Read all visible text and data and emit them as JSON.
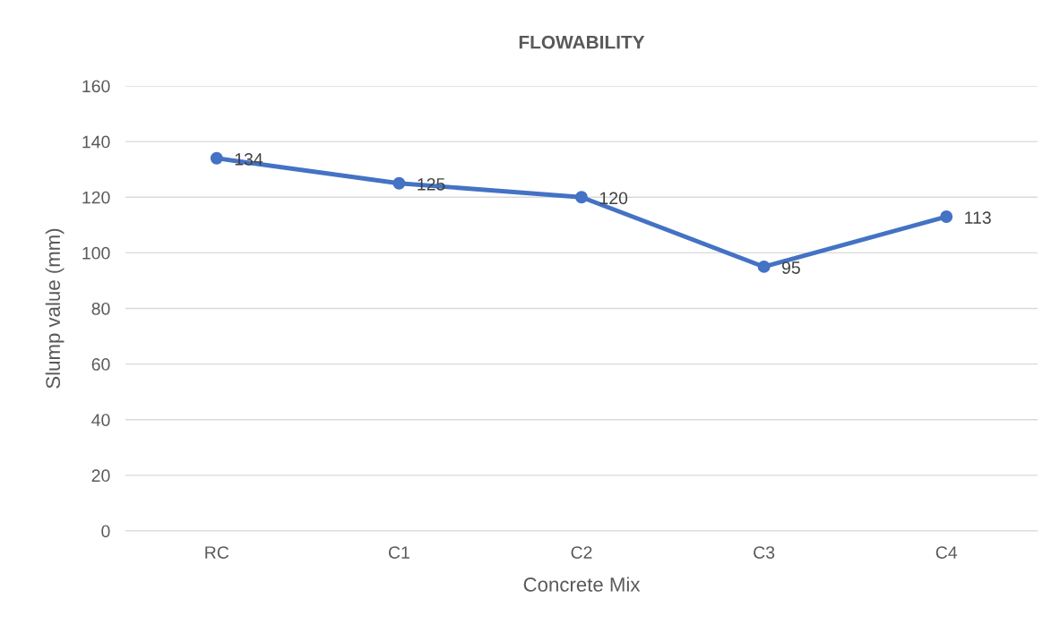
{
  "chart_data": {
    "type": "line",
    "title": "FLOWABILITY",
    "xlabel": "Concrete Mix",
    "ylabel": "Slump value (mm)",
    "categories": [
      "RC",
      "C1",
      "C2",
      "C3",
      "C4"
    ],
    "series": [
      {
        "color": "#4472c4",
        "values": [
          134,
          125,
          120,
          95,
          113
        ]
      }
    ],
    "ylim": [
      0,
      160
    ],
    "yticks": [
      0,
      20,
      40,
      60,
      80,
      100,
      120,
      140,
      160
    ],
    "grid": "y",
    "marker": "circle",
    "line_style": "solid",
    "data_labels": true
  }
}
